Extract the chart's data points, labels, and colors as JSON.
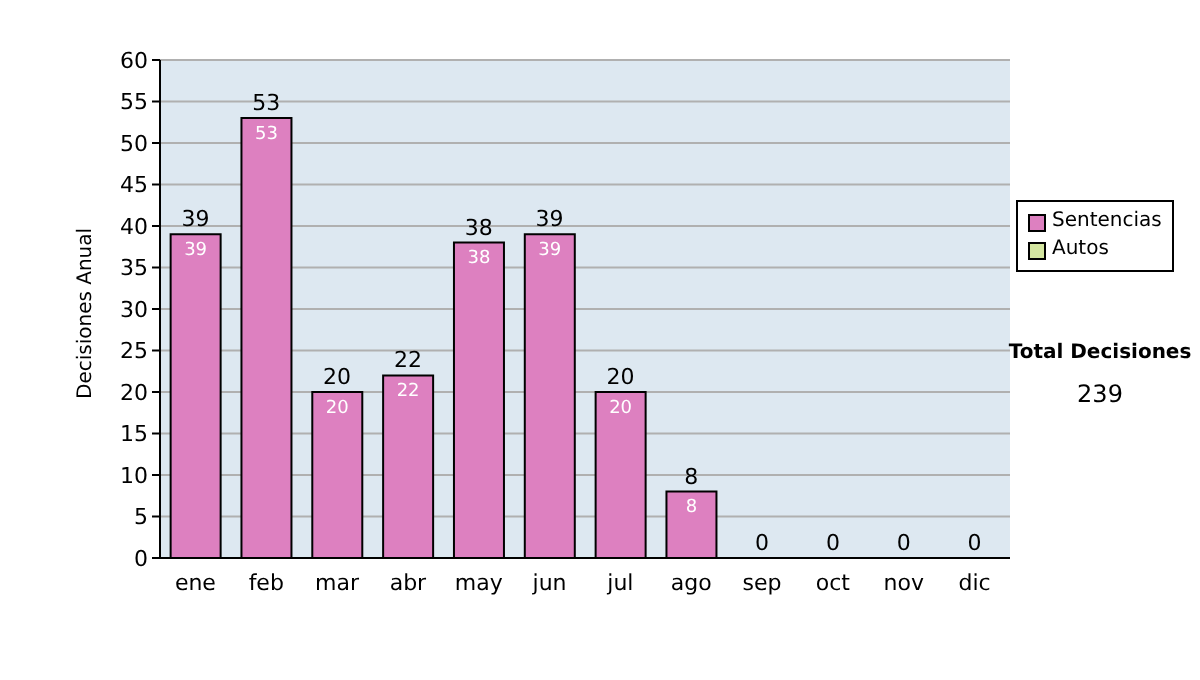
{
  "chart_data": {
    "type": "bar",
    "ylabel": "Decisiones Anual",
    "categories": [
      "ene",
      "feb",
      "mar",
      "abr",
      "may",
      "jun",
      "jul",
      "ago",
      "sep",
      "oct",
      "nov",
      "dic"
    ],
    "series": [
      {
        "name": "Sentencias",
        "color": "#dd80c0",
        "values": [
          39,
          53,
          20,
          22,
          38,
          39,
          20,
          8,
          0,
          0,
          0,
          0
        ],
        "value_labels": [
          "39",
          "53",
          "20",
          "22",
          "38",
          "39",
          "20",
          "8",
          null,
          null,
          null,
          null
        ]
      },
      {
        "name": "Autos",
        "color": "#d4e6a0",
        "values": [
          0,
          0,
          0,
          0,
          0,
          0,
          0,
          0,
          0,
          0,
          0,
          0
        ]
      }
    ],
    "stacked": true,
    "totals": [
      "39",
      "53",
      "20",
      "22",
      "38",
      "39",
      "20",
      "8",
      "0",
      "0",
      "0",
      "0"
    ],
    "ylim": [
      0,
      60
    ],
    "yticks": [
      0,
      5,
      10,
      15,
      20,
      25,
      30,
      35,
      40,
      45,
      50,
      55,
      60
    ],
    "grid": "y",
    "legend": "right",
    "annotations": [
      "Total Decisiones",
      "239"
    ]
  }
}
